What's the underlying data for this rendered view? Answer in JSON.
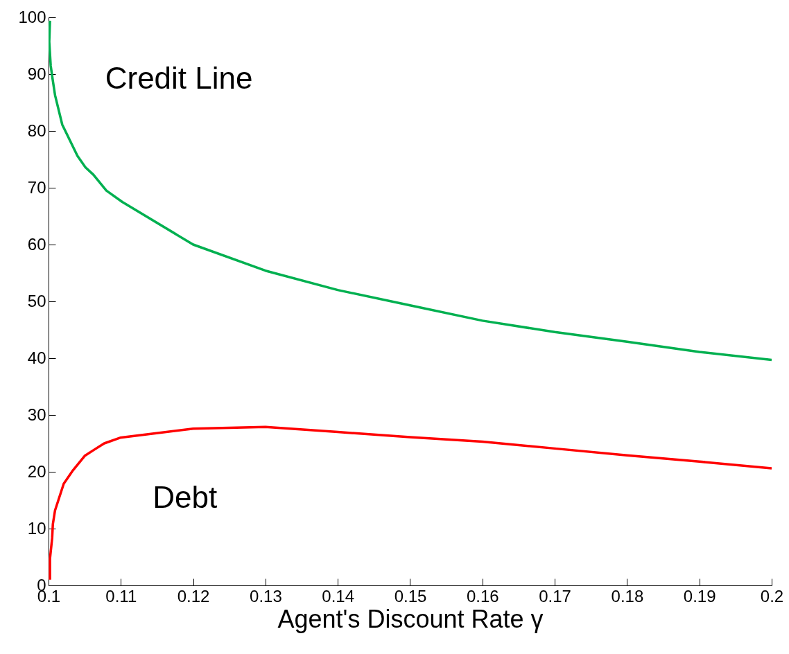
{
  "chart_data": {
    "type": "line",
    "xlabel": "Agent's Discount Rate γ",
    "x": [
      0.1002,
      0.1001,
      0.1003,
      0.1006,
      0.1009,
      0.1019,
      0.104,
      0.1051,
      0.1062,
      0.108,
      0.1102,
      0.12,
      0.13,
      0.14,
      0.15,
      0.16,
      0.17,
      0.18,
      0.19,
      0.2
    ],
    "series": [
      {
        "name": "Credit Line",
        "color": "#00b050",
        "values": [
          99.4,
          95.7,
          91.5,
          88.8,
          86.3,
          81.1,
          75.6,
          73.6,
          72.3,
          69.5,
          67.5,
          60,
          55.4,
          52,
          49.3,
          46.6,
          44.6,
          42.9,
          41.1,
          39.7
        ]
      },
      {
        "name": "Debt",
        "color": "#ff0000",
        "x": [
          0.1002,
          0.1002,
          0.1005,
          0.1006,
          0.1009,
          0.1021,
          0.1034,
          0.105,
          0.1062,
          0.1077,
          0.1099,
          0.12,
          0.13,
          0.14,
          0.15,
          0.16,
          0.17,
          0.18,
          0.19,
          0.2
        ],
        "values": [
          1.0,
          4.7,
          8.3,
          10.8,
          13.2,
          17.9,
          20.3,
          22.8,
          23.8,
          25,
          26,
          27.6,
          27.9,
          27,
          26.1,
          25.3,
          24.1,
          22.9,
          21.8,
          20.6
        ]
      }
    ],
    "xlim": [
      0.1,
      0.2
    ],
    "xticks": [
      0.1,
      0.11,
      0.12,
      0.13,
      0.14,
      0.15,
      0.16,
      0.17,
      0.18,
      0.19,
      0.2
    ],
    "ylim": [
      0,
      100
    ],
    "yticks": [
      0,
      10,
      20,
      30,
      40,
      50,
      60,
      70,
      80,
      90,
      100
    ]
  }
}
